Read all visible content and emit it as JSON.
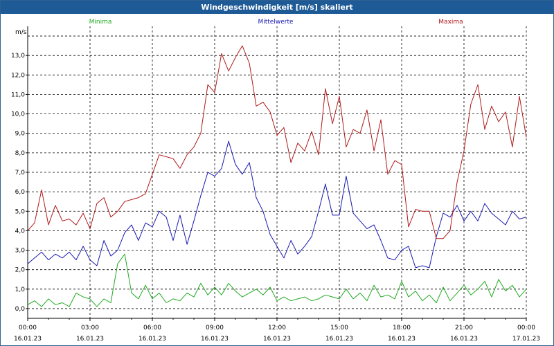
{
  "window": {
    "title": "Windgeschwindigkeit [m/s] skaliert"
  },
  "colors": {
    "minima": "#1faa1f",
    "mittel": "#1818b0",
    "maxima": "#b01818",
    "titlebar": "#1d5a96"
  },
  "chart_data": {
    "type": "line",
    "title": "Windgeschwindigkeit [m/s] skaliert",
    "ylabel": "m/s",
    "ylim": [
      -0.5,
      14.5
    ],
    "grid": true,
    "y_ticks": [
      "0,0",
      "1,0",
      "2,0",
      "3,0",
      "4,0",
      "5,0",
      "6,0",
      "7,0",
      "8,0",
      "9,0",
      "10,0",
      "11,0",
      "12,0",
      "13,0"
    ],
    "x_ticks": [
      {
        "time": "00:00",
        "date": "16.01.23"
      },
      {
        "time": "03:00",
        "date": "16.01.23"
      },
      {
        "time": "06:00",
        "date": "16.01.23"
      },
      {
        "time": "09:00",
        "date": "16.01.23"
      },
      {
        "time": "12:00",
        "date": "16.01.23"
      },
      {
        "time": "15:00",
        "date": "16.01.23"
      },
      {
        "time": "18:00",
        "date": "16.01.23"
      },
      {
        "time": "21:00",
        "date": "16.01.23"
      },
      {
        "time": "00:00",
        "date": "17.01.23"
      }
    ],
    "x_hours": [
      0,
      0.33,
      0.67,
      1,
      1.33,
      1.67,
      2,
      2.33,
      2.67,
      3,
      3.33,
      3.67,
      4,
      4.33,
      4.67,
      5,
      5.33,
      5.67,
      6,
      6.33,
      6.67,
      7,
      7.33,
      7.67,
      8,
      8.33,
      8.67,
      9,
      9.33,
      9.67,
      10,
      10.33,
      10.67,
      11,
      11.33,
      11.67,
      12,
      12.33,
      12.67,
      13,
      13.33,
      13.67,
      14,
      14.33,
      14.67,
      15,
      15.33,
      15.67,
      16,
      16.33,
      16.67,
      17,
      17.33,
      17.67,
      18,
      18.33,
      18.67,
      19,
      19.33,
      19.67,
      20,
      20.33,
      20.67,
      21,
      21.33,
      21.67,
      22,
      22.33,
      22.67,
      23,
      23.33,
      23.67,
      24
    ],
    "series": [
      {
        "name": "Minima",
        "values": [
          0.2,
          0.4,
          0.1,
          0.5,
          0.2,
          0.3,
          0.1,
          0.8,
          0.6,
          0.5,
          0.1,
          0.5,
          0.3,
          2.3,
          2.8,
          0.8,
          0.5,
          1.2,
          0.5,
          0.8,
          0.3,
          0.5,
          0.4,
          0.8,
          0.6,
          1.3,
          0.7,
          1.1,
          0.7,
          1.3,
          0.9,
          0.6,
          0.8,
          1.0,
          0.7,
          1.1,
          0.4,
          0.6,
          0.4,
          0.5,
          0.6,
          0.4,
          0.5,
          0.7,
          0.6,
          0.5,
          1.0,
          0.5,
          0.8,
          0.4,
          1.2,
          0.6,
          0.7,
          0.5,
          1.4,
          0.6,
          0.9,
          0.4,
          0.7,
          0.3,
          1.1,
          0.4,
          0.8,
          1.2,
          0.7,
          1.0,
          1.4,
          0.6,
          1.5,
          0.9,
          1.2,
          0.6,
          1.0
        ]
      },
      {
        "name": "Mittelwerte",
        "values": [
          2.3,
          2.6,
          2.9,
          2.5,
          2.8,
          2.6,
          2.9,
          2.5,
          3.2,
          2.5,
          2.2,
          3.5,
          2.7,
          3.0,
          3.9,
          4.3,
          3.5,
          4.4,
          4.2,
          5.0,
          4.7,
          3.5,
          4.8,
          3.3,
          4.5,
          5.8,
          7.0,
          6.8,
          7.2,
          8.6,
          7.4,
          6.9,
          7.5,
          5.7,
          5.0,
          3.8,
          3.2,
          2.6,
          3.5,
          2.8,
          3.2,
          3.7,
          5.0,
          6.4,
          4.8,
          4.8,
          6.8,
          4.9,
          4.5,
          4.1,
          4.3,
          3.5,
          2.6,
          2.5,
          3.0,
          3.2,
          2.1,
          2.2,
          2.1,
          3.7,
          4.9,
          4.7,
          5.3,
          4.5,
          5.0,
          4.5,
          5.4,
          4.9,
          4.6,
          4.3,
          5.0,
          4.6,
          4.7
        ]
      },
      {
        "name": "Maxima",
        "values": [
          4.0,
          4.4,
          6.1,
          4.3,
          5.3,
          4.5,
          4.6,
          4.3,
          4.9,
          4.1,
          5.4,
          5.7,
          4.7,
          5.0,
          5.5,
          5.6,
          5.7,
          5.9,
          6.9,
          7.9,
          7.8,
          7.7,
          7.2,
          7.9,
          8.3,
          9.0,
          11.5,
          11.1,
          13.1,
          12.2,
          12.9,
          13.5,
          12.6,
          10.4,
          10.6,
          10.1,
          8.9,
          9.3,
          7.5,
          8.5,
          8.1,
          9.1,
          7.9,
          11.3,
          9.5,
          10.9,
          8.3,
          9.2,
          9.0,
          10.2,
          8.1,
          9.7,
          6.9,
          7.6,
          7.4,
          4.2,
          5.1,
          5.0,
          5.0,
          3.6,
          3.6,
          4.0,
          6.5,
          8.1,
          10.5,
          11.5,
          9.2,
          10.4,
          9.6,
          10.1,
          8.3,
          10.9,
          8.8
        ]
      }
    ]
  }
}
